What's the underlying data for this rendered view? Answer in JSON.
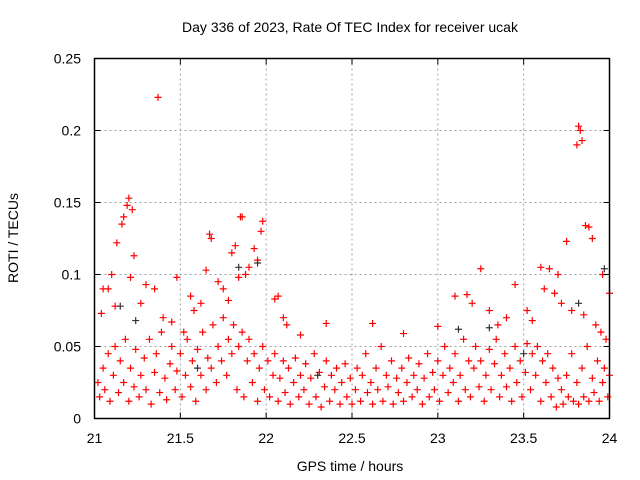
{
  "chart_data": {
    "type": "scatter",
    "title": "Day 336 of 2023, Rate Of TEC Index for receiver ucak",
    "xlabel": "GPS time / hours",
    "ylabel": "ROTI / TECUs",
    "xlim": [
      21,
      24
    ],
    "ylim": [
      0,
      0.25
    ],
    "xticks": [
      21,
      21.5,
      22,
      22.5,
      23,
      23.5,
      24
    ],
    "xtick_labels": [
      "21",
      "21.5",
      "22",
      "22.5",
      "23",
      "23.5",
      "24"
    ],
    "yticks": [
      0,
      0.05,
      0.1,
      0.15,
      0.2,
      0.25
    ],
    "ytick_labels": [
      "0",
      "0.05",
      "0.1",
      "0.15",
      "0.2",
      "0.25"
    ],
    "grid": true,
    "marker": "plus",
    "series": [
      {
        "name": "red",
        "color": "#ff0000",
        "points": [
          [
            21.37,
            0.223
          ],
          [
            23.82,
            0.203
          ],
          [
            23.83,
            0.2
          ],
          [
            23.81,
            0.19
          ],
          [
            23.84,
            0.193
          ],
          [
            21.2,
            0.153
          ],
          [
            21.22,
            0.145
          ],
          [
            21.17,
            0.14
          ],
          [
            21.16,
            0.135
          ],
          [
            21.19,
            0.148
          ],
          [
            21.85,
            0.14
          ],
          [
            21.86,
            0.14
          ],
          [
            21.98,
            0.137
          ],
          [
            21.97,
            0.13
          ],
          [
            21.67,
            0.128
          ],
          [
            21.68,
            0.125
          ],
          [
            23.86,
            0.134
          ],
          [
            23.88,
            0.133
          ],
          [
            23.9,
            0.125
          ],
          [
            23.75,
            0.123
          ],
          [
            23.96,
            0.1
          ],
          [
            24,
            0.087
          ],
          [
            21.13,
            0.122
          ],
          [
            21.23,
            0.113
          ],
          [
            21.48,
            0.098
          ],
          [
            21.3,
            0.093
          ],
          [
            21.35,
            0.09
          ],
          [
            21.82,
            0.12
          ],
          [
            21.8,
            0.115
          ],
          [
            21.95,
            0.11
          ],
          [
            21.93,
            0.118
          ],
          [
            22.07,
            0.085
          ],
          [
            22.05,
            0.083
          ],
          [
            23.25,
            0.104
          ],
          [
            23.6,
            0.105
          ],
          [
            23.65,
            0.104
          ],
          [
            23.7,
            0.1
          ],
          [
            23.45,
            0.093
          ],
          [
            23.1,
            0.085
          ],
          [
            23.17,
            0.086
          ],
          [
            22.35,
            0.066
          ],
          [
            22.62,
            0.066
          ],
          [
            22.8,
            0.059
          ],
          [
            23,
            0.064
          ],
          [
            23.3,
            0.075
          ],
          [
            23.52,
            0.075
          ],
          [
            21.05,
            0.09
          ],
          [
            21.08,
            0.09
          ],
          [
            21.1,
            0.1
          ],
          [
            21.21,
            0.098
          ],
          [
            21.56,
            0.085
          ],
          [
            21.65,
            0.103
          ],
          [
            21.75,
            0.09
          ],
          [
            21.9,
            0.105
          ],
          [
            21.72,
            0.095
          ],
          [
            21.58,
            0.075
          ],
          [
            21.62,
            0.08
          ],
          [
            21.78,
            0.082
          ],
          [
            21.84,
            0.098
          ],
          [
            21.88,
            0.1
          ],
          [
            21.04,
            0.073
          ],
          [
            21.12,
            0.078
          ],
          [
            21.27,
            0.08
          ],
          [
            21.4,
            0.07
          ],
          [
            21.45,
            0.067
          ],
          [
            21.52,
            0.06
          ],
          [
            22.1,
            0.07
          ],
          [
            22.12,
            0.065
          ],
          [
            22.2,
            0.058
          ],
          [
            23.2,
            0.08
          ],
          [
            23.35,
            0.065
          ],
          [
            23.4,
            0.07
          ],
          [
            23.55,
            0.068
          ],
          [
            23.62,
            0.09
          ],
          [
            23.68,
            0.087
          ],
          [
            23.72,
            0.08
          ],
          [
            23.78,
            0.075
          ],
          [
            23.85,
            0.072
          ],
          [
            23.92,
            0.065
          ],
          [
            23.95,
            0.06
          ],
          [
            23.98,
            0.055
          ],
          [
            21.02,
            0.025
          ],
          [
            21.03,
            0.015
          ],
          [
            21.05,
            0.035
          ],
          [
            21.06,
            0.02
          ],
          [
            21.08,
            0.045
          ],
          [
            21.09,
            0.012
          ],
          [
            21.11,
            0.03
          ],
          [
            21.12,
            0.05
          ],
          [
            21.14,
            0.018
          ],
          [
            21.15,
            0.04
          ],
          [
            21.17,
            0.025
          ],
          [
            21.18,
            0.055
          ],
          [
            21.2,
            0.012
          ],
          [
            21.21,
            0.035
          ],
          [
            21.23,
            0.022
          ],
          [
            21.24,
            0.048
          ],
          [
            21.26,
            0.015
          ],
          [
            21.27,
            0.03
          ],
          [
            21.29,
            0.042
          ],
          [
            21.3,
            0.02
          ],
          [
            21.32,
            0.055
          ],
          [
            21.33,
            0.01
          ],
          [
            21.35,
            0.032
          ],
          [
            21.36,
            0.045
          ],
          [
            21.38,
            0.018
          ],
          [
            21.39,
            0.06
          ],
          [
            21.41,
            0.028
          ],
          [
            21.42,
            0.013
          ],
          [
            21.44,
            0.038
          ],
          [
            21.45,
            0.05
          ],
          [
            21.47,
            0.02
          ],
          [
            21.48,
            0.033
          ],
          [
            21.5,
            0.045
          ],
          [
            21.51,
            0.015
          ],
          [
            21.53,
            0.03
          ],
          [
            21.54,
            0.055
          ],
          [
            21.56,
            0.022
          ],
          [
            21.57,
            0.04
          ],
          [
            21.59,
            0.012
          ],
          [
            21.6,
            0.048
          ],
          [
            21.62,
            0.03
          ],
          [
            21.63,
            0.06
          ],
          [
            21.65,
            0.02
          ],
          [
            21.66,
            0.042
          ],
          [
            21.68,
            0.035
          ],
          [
            21.69,
            0.065
          ],
          [
            21.71,
            0.025
          ],
          [
            21.72,
            0.05
          ],
          [
            21.74,
            0.04
          ],
          [
            21.75,
            0.07
          ],
          [
            21.77,
            0.03
          ],
          [
            21.78,
            0.055
          ],
          [
            21.8,
            0.045
          ],
          [
            21.81,
            0.065
          ],
          [
            21.83,
            0.02
          ],
          [
            21.84,
            0.05
          ],
          [
            21.86,
            0.06
          ],
          [
            21.87,
            0.015
          ],
          [
            21.89,
            0.04
          ],
          [
            21.9,
            0.055
          ],
          [
            21.92,
            0.025
          ],
          [
            21.93,
            0.045
          ],
          [
            21.95,
            0.012
          ],
          [
            21.96,
            0.035
          ],
          [
            21.98,
            0.05
          ],
          [
            21.99,
            0.02
          ],
          [
            22.01,
            0.04
          ],
          [
            22.02,
            0.015
          ],
          [
            22.04,
            0.03
          ],
          [
            22.05,
            0.045
          ],
          [
            22.07,
            0.012
          ],
          [
            22.08,
            0.028
          ],
          [
            22.1,
            0.04
          ],
          [
            22.11,
            0.018
          ],
          [
            22.13,
            0.035
          ],
          [
            22.14,
            0.01
          ],
          [
            22.16,
            0.025
          ],
          [
            22.17,
            0.042
          ],
          [
            22.19,
            0.015
          ],
          [
            22.2,
            0.03
          ],
          [
            22.22,
            0.02
          ],
          [
            22.23,
            0.038
          ],
          [
            22.25,
            0.01
          ],
          [
            22.26,
            0.028
          ],
          [
            22.28,
            0.045
          ],
          [
            22.29,
            0.015
          ],
          [
            22.31,
            0.032
          ],
          [
            22.32,
            0.008
          ],
          [
            22.34,
            0.022
          ],
          [
            22.35,
            0.04
          ],
          [
            22.37,
            0.012
          ],
          [
            22.38,
            0.03
          ],
          [
            22.4,
            0.02
          ],
          [
            22.41,
            0.035
          ],
          [
            22.43,
            0.01
          ],
          [
            22.44,
            0.025
          ],
          [
            22.46,
            0.038
          ],
          [
            22.47,
            0.015
          ],
          [
            22.49,
            0.028
          ],
          [
            22.5,
            0.01
          ],
          [
            22.52,
            0.02
          ],
          [
            22.53,
            0.035
          ],
          [
            22.55,
            0.012
          ],
          [
            22.56,
            0.03
          ],
          [
            22.58,
            0.045
          ],
          [
            22.59,
            0.018
          ],
          [
            22.61,
            0.025
          ],
          [
            22.62,
            0.01
          ],
          [
            22.64,
            0.035
          ],
          [
            22.65,
            0.02
          ],
          [
            22.67,
            0.05
          ],
          [
            22.68,
            0.012
          ],
          [
            22.7,
            0.03
          ],
          [
            22.71,
            0.022
          ],
          [
            22.73,
            0.04
          ],
          [
            22.74,
            0.01
          ],
          [
            22.76,
            0.028
          ],
          [
            22.77,
            0.018
          ],
          [
            22.79,
            0.035
          ],
          [
            22.8,
            0.012
          ],
          [
            22.82,
            0.025
          ],
          [
            22.83,
            0.042
          ],
          [
            22.85,
            0.015
          ],
          [
            22.86,
            0.03
          ],
          [
            22.88,
            0.02
          ],
          [
            22.89,
            0.038
          ],
          [
            22.91,
            0.01
          ],
          [
            22.92,
            0.028
          ],
          [
            22.94,
            0.045
          ],
          [
            22.95,
            0.015
          ],
          [
            22.97,
            0.032
          ],
          [
            22.98,
            0.02
          ],
          [
            23.0,
            0.04
          ],
          [
            23.01,
            0.012
          ],
          [
            23.03,
            0.03
          ],
          [
            23.04,
            0.05
          ],
          [
            23.06,
            0.018
          ],
          [
            23.07,
            0.035
          ],
          [
            23.09,
            0.025
          ],
          [
            23.1,
            0.045
          ],
          [
            23.12,
            0.012
          ],
          [
            23.13,
            0.03
          ],
          [
            23.15,
            0.055
          ],
          [
            23.16,
            0.02
          ],
          [
            23.18,
            0.04
          ],
          [
            23.19,
            0.015
          ],
          [
            23.21,
            0.035
          ],
          [
            23.22,
            0.05
          ],
          [
            23.24,
            0.022
          ],
          [
            23.25,
            0.04
          ],
          [
            23.27,
            0.012
          ],
          [
            23.28,
            0.03
          ],
          [
            23.3,
            0.048
          ],
          [
            23.31,
            0.02
          ],
          [
            23.33,
            0.038
          ],
          [
            23.34,
            0.055
          ],
          [
            23.36,
            0.015
          ],
          [
            23.37,
            0.03
          ],
          [
            23.39,
            0.045
          ],
          [
            23.4,
            0.022
          ],
          [
            23.42,
            0.035
          ],
          [
            23.43,
            0.012
          ],
          [
            23.45,
            0.05
          ],
          [
            23.46,
            0.025
          ],
          [
            23.48,
            0.04
          ],
          [
            23.49,
            0.015
          ],
          [
            23.51,
            0.032
          ],
          [
            23.52,
            0.052
          ],
          [
            23.54,
            0.02
          ],
          [
            23.55,
            0.045
          ],
          [
            23.57,
            0.03
          ],
          [
            23.58,
            0.05
          ],
          [
            23.6,
            0.012
          ],
          [
            23.61,
            0.04
          ],
          [
            23.63,
            0.025
          ],
          [
            23.64,
            0.045
          ],
          [
            23.66,
            0.015
          ],
          [
            23.67,
            0.035
          ],
          [
            23.69,
            0.008
          ],
          [
            23.7,
            0.028
          ],
          [
            23.72,
            0.02
          ],
          [
            23.73,
            0.01
          ],
          [
            23.75,
            0.03
          ],
          [
            23.76,
            0.015
          ],
          [
            23.78,
            0.045
          ],
          [
            23.79,
            0.012
          ],
          [
            23.81,
            0.025
          ],
          [
            23.82,
            0.01
          ],
          [
            23.84,
            0.035
          ],
          [
            23.85,
            0.015
          ],
          [
            23.87,
            0.05
          ],
          [
            23.88,
            0.012
          ],
          [
            23.9,
            0.028
          ],
          [
            23.91,
            0.018
          ],
          [
            23.93,
            0.04
          ],
          [
            23.94,
            0.012
          ],
          [
            23.96,
            0.025
          ],
          [
            23.97,
            0.035
          ],
          [
            23.99,
            0.015
          ],
          [
            24.0,
            0.03
          ]
        ]
      },
      {
        "name": "black",
        "color": "#333333",
        "points": [
          [
            21.15,
            0.078
          ],
          [
            21.24,
            0.068
          ],
          [
            21.95,
            0.108
          ],
          [
            21.84,
            0.105
          ],
          [
            23.12,
            0.062
          ],
          [
            23.3,
            0.063
          ],
          [
            23.82,
            0.08
          ],
          [
            23.97,
            0.104
          ],
          [
            22.3,
            0.03
          ],
          [
            21.6,
            0.035
          ],
          [
            23.5,
            0.045
          ]
        ]
      }
    ]
  }
}
